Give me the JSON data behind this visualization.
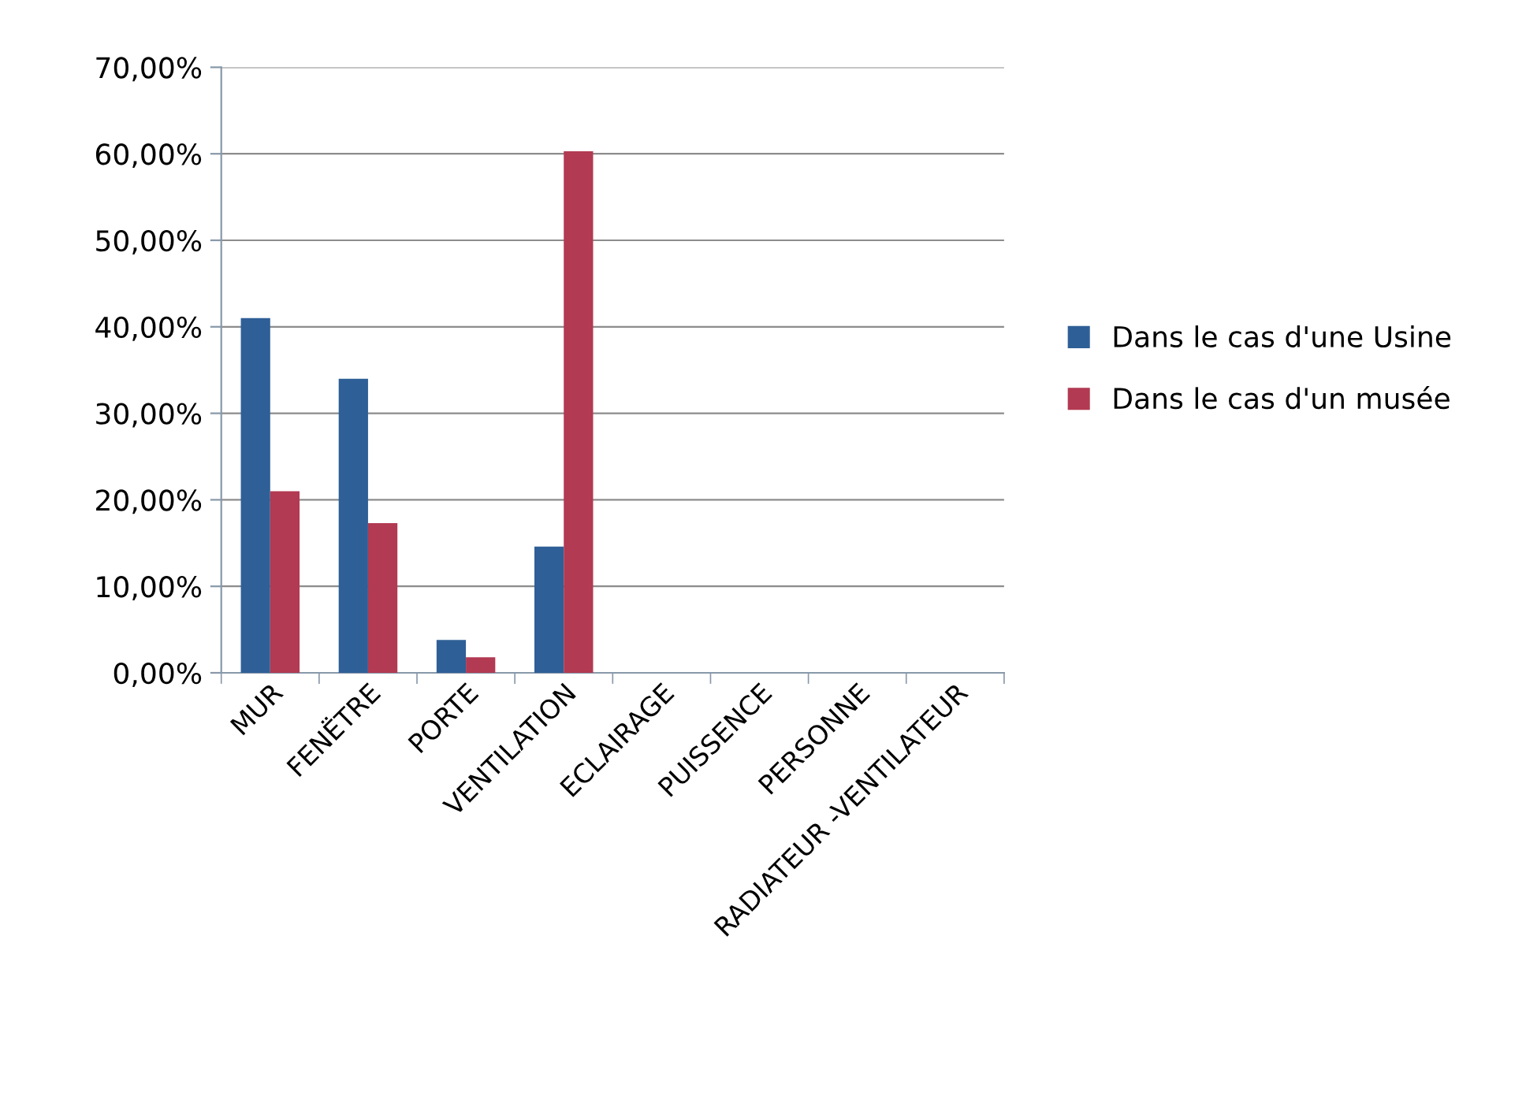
{
  "chart_data": {
    "type": "bar",
    "categories": [
      "MUR",
      "FENËTRE",
      "PORTE",
      "VENTILATION",
      "ECLAIRAGE",
      "PUISSENCE",
      "PERSONNE",
      "RADIATEUR -VENTILATEUR"
    ],
    "series": [
      {
        "name": "Dans le cas d'une Usine",
        "color": "#2f5f97",
        "values": [
          41.0,
          34.0,
          3.8,
          14.6,
          null,
          null,
          null,
          null
        ]
      },
      {
        "name": "Dans le cas d'un musée",
        "color": "#b23a52",
        "values": [
          21.0,
          17.3,
          1.8,
          60.3,
          null,
          null,
          null,
          null
        ]
      }
    ],
    "ylim": [
      0,
      70
    ],
    "yticks": [
      {
        "value": 0,
        "label": "0,00%"
      },
      {
        "value": 10,
        "label": "10,00%"
      },
      {
        "value": 20,
        "label": "20,00%"
      },
      {
        "value": 30,
        "label": "30,00%"
      },
      {
        "value": 40,
        "label": "40,00%"
      },
      {
        "value": 50,
        "label": "50,00%"
      },
      {
        "value": 60,
        "label": "60,00%"
      },
      {
        "value": 70,
        "label": "70,00%"
      }
    ],
    "grid": "y",
    "legend": "right"
  }
}
